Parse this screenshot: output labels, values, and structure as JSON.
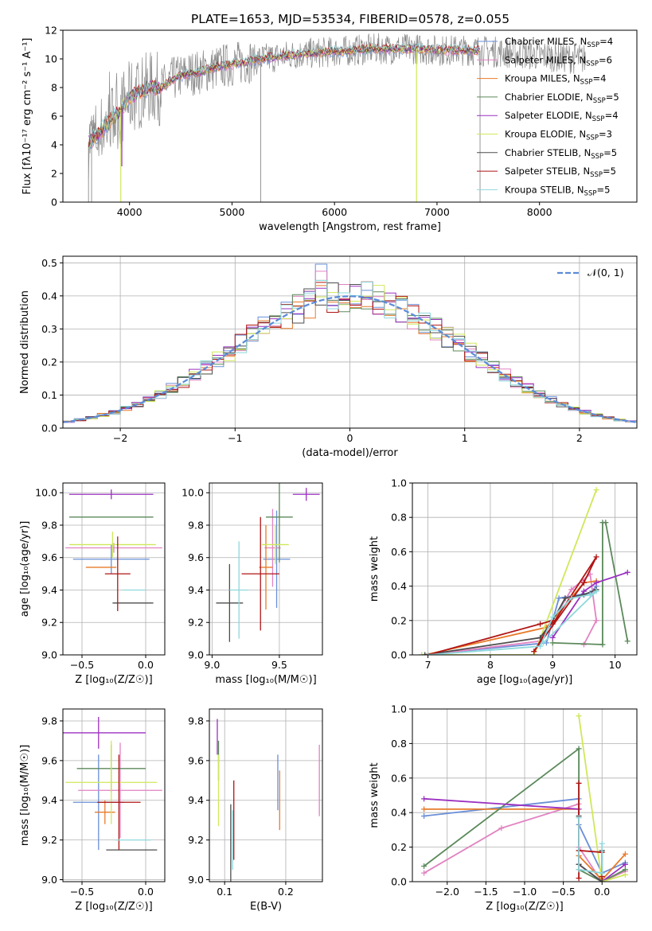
{
  "figure": {
    "title": "PLATE=1653, MJD=53534, FIBERID=0578, z=0.055"
  },
  "colors": {
    "Chabrier MILES": "#6a8fd8",
    "Salpeter MILES": "#e183c1",
    "Kroupa MILES": "#e87b2a",
    "Chabrier ELODIE": "#5b8a5b",
    "Salpeter ELODIE": "#9b30c0",
    "Kroupa ELODIE": "#cfe85a",
    "Chabrier STELIB": "#4d4d4d",
    "Salpeter STELIB": "#b01515",
    "Kroupa STELIB": "#8ed8dc",
    "data": "#8a8a8a"
  },
  "chart_data": [
    {
      "id": "spectrum",
      "type": "line",
      "xlabel": "wavelength [Angstrom, rest frame]",
      "ylabel": "Flux [fλ10⁻¹⁷ erg cm⁻² s⁻¹ A⁻¹]",
      "xlim": [
        3350,
        8950
      ],
      "ylim": [
        0,
        12
      ],
      "xticks": [
        4000,
        5000,
        6000,
        7000,
        8000
      ],
      "yticks": [
        0,
        2,
        4,
        6,
        8,
        10,
        12
      ],
      "grid": false,
      "legend_position": "right",
      "continuum": {
        "x": [
          3600,
          3700,
          3800,
          3900,
          4000,
          4100,
          4200,
          4300,
          4400,
          4500,
          4600,
          4700,
          4800,
          4900,
          5000,
          5200,
          5400,
          5600,
          5800,
          6000,
          6200,
          6400,
          6600,
          6800,
          7000,
          7200,
          7400
        ],
        "y": [
          4.2,
          4.8,
          5.6,
          6.3,
          7.3,
          7.7,
          8.0,
          7.9,
          8.5,
          8.8,
          9.0,
          9.1,
          9.3,
          9.5,
          9.6,
          9.9,
          10.1,
          10.3,
          10.4,
          10.5,
          10.6,
          10.7,
          10.7,
          10.7,
          10.6,
          10.6,
          10.6
        ]
      },
      "data_range": [
        3600,
        8450
      ],
      "model_range": [
        3600,
        7420
      ],
      "data_spikes": [
        {
          "x": 3600,
          "y": 0
        },
        {
          "x": 3630,
          "y": 0
        },
        {
          "x": 5280,
          "y": 0
        },
        {
          "x": 7420,
          "y": 0
        }
      ],
      "model_dips": [
        {
          "x": 3915,
          "y": 0,
          "series": "Kroupa ELODIE"
        },
        {
          "x": 3925,
          "y": 2.5,
          "series": "Salpeter ELODIE"
        },
        {
          "x": 6800,
          "y": 0,
          "series": "Kroupa ELODIE"
        }
      ],
      "series": [
        {
          "name": "Chabrier MILES, N",
          "sub": "SSP",
          "tail": "=4",
          "key": "Chabrier MILES"
        },
        {
          "name": "Salpeter MILES, N",
          "sub": "SSP",
          "tail": "=6",
          "key": "Salpeter MILES"
        },
        {
          "name": "Kroupa MILES, N",
          "sub": "SSP",
          "tail": "=4",
          "key": "Kroupa MILES"
        },
        {
          "name": "Chabrier ELODIE, N",
          "sub": "SSP",
          "tail": "=5",
          "key": "Chabrier ELODIE"
        },
        {
          "name": "Salpeter ELODIE, N",
          "sub": "SSP",
          "tail": "=4",
          "key": "Salpeter ELODIE"
        },
        {
          "name": "Kroupa ELODIE, N",
          "sub": "SSP",
          "tail": "=3",
          "key": "Kroupa ELODIE"
        },
        {
          "name": "Chabrier STELIB, N",
          "sub": "SSP",
          "tail": "=5",
          "key": "Chabrier STELIB"
        },
        {
          "name": "Salpeter STELIB, N",
          "sub": "SSP",
          "tail": "=5",
          "key": "Salpeter STELIB"
        },
        {
          "name": "Kroupa STELIB, N",
          "sub": "SSP",
          "tail": "=5",
          "key": "Kroupa STELIB"
        }
      ]
    },
    {
      "id": "residuals",
      "type": "line",
      "xlabel": "(data-model)/error",
      "ylabel": "Normed distribution",
      "xlim": [
        -2.5,
        2.5
      ],
      "ylim": [
        0,
        0.52
      ],
      "xticks": [
        -2,
        -1,
        0,
        1,
        2
      ],
      "yticks": [
        0.0,
        0.1,
        0.2,
        0.3,
        0.4,
        0.5
      ],
      "grid": true,
      "legend_position": "top-right",
      "gaussian_label": "𝒩(0, 1)",
      "gaussian_color": "#5b8bd8",
      "bin_width": 0.1,
      "peaks": [
        0.5,
        0.49,
        0.44,
        0.45,
        0.43,
        0.4,
        0.38,
        0.46,
        0.45
      ]
    },
    {
      "id": "age-vs-Z",
      "type": "scatter",
      "xlabel": "Z [log₁₀(Z/Z☉)]",
      "ylabel": "age  [log₁₀(age/yr)]",
      "xlim": [
        -0.65,
        0.15
      ],
      "ylim": [
        9.0,
        10.06
      ],
      "xticks": [
        -0.5,
        0.0
      ],
      "yticks": [
        9.0,
        9.2,
        9.4,
        9.6,
        9.8,
        10.0
      ],
      "grid": true,
      "points": [
        {
          "x": -0.27,
          "y": 9.59,
          "xerr": 0.3,
          "yerr": 0.09,
          "s": "Chabrier MILES"
        },
        {
          "x": -0.25,
          "y": 9.66,
          "xerr": 0.38,
          "yerr": 0.03,
          "s": "Salpeter MILES"
        },
        {
          "x": -0.35,
          "y": 9.54,
          "xerr": 0.12,
          "yerr": 0.0,
          "s": "Kroupa MILES"
        },
        {
          "x": -0.27,
          "y": 9.85,
          "xerr": 0.33,
          "yerr": 0.0,
          "s": "Chabrier ELODIE"
        },
        {
          "x": -0.27,
          "y": 9.99,
          "xerr": 0.33,
          "yerr": 0.03,
          "s": "Salpeter ELODIE"
        },
        {
          "x": -0.26,
          "y": 9.68,
          "xerr": 0.34,
          "yerr": 0.08,
          "s": "Kroupa ELODIE"
        },
        {
          "x": -0.1,
          "y": 9.32,
          "xerr": 0.16,
          "yerr": 0.0,
          "s": "Chabrier STELIB"
        },
        {
          "x": -0.22,
          "y": 9.5,
          "xerr": 0.1,
          "yerr": 0.23,
          "s": "Salpeter STELIB"
        },
        {
          "x": -0.09,
          "y": 9.4,
          "xerr": 0.09,
          "yerr": 0.0,
          "s": "Kroupa STELIB"
        }
      ]
    },
    {
      "id": "age-vs-mass",
      "type": "scatter",
      "xlabel": "mass [log₁₀(M/M☉)]",
      "ylabel": "",
      "xlim": [
        8.98,
        9.82
      ],
      "ylim": [
        9.0,
        10.06
      ],
      "xticks": [
        9.0,
        9.5
      ],
      "yticks": [
        9.0,
        9.2,
        9.4,
        9.6,
        9.8,
        10.0
      ],
      "grid": true,
      "points": [
        {
          "x": 9.48,
          "y": 9.59,
          "xerr": 0.1,
          "yerr": 0.3,
          "s": "Chabrier MILES"
        },
        {
          "x": 9.45,
          "y": 9.66,
          "xerr": 0.06,
          "yerr": 0.24,
          "s": "Salpeter MILES"
        },
        {
          "x": 9.4,
          "y": 9.54,
          "xerr": 0.05,
          "yerr": 0.26,
          "s": "Kroupa MILES"
        },
        {
          "x": 9.5,
          "y": 9.85,
          "xerr": 0.1,
          "yerr": 0.28,
          "s": "Chabrier ELODIE"
        },
        {
          "x": 9.7,
          "y": 9.99,
          "xerr": 0.1,
          "yerr": 0.04,
          "s": "Salpeter ELODIE"
        },
        {
          "x": 9.47,
          "y": 9.68,
          "xerr": 0.1,
          "yerr": 0.12,
          "s": "Kroupa ELODIE"
        },
        {
          "x": 9.13,
          "y": 9.32,
          "xerr": 0.1,
          "yerr": 0.24,
          "s": "Chabrier STELIB"
        },
        {
          "x": 9.36,
          "y": 9.5,
          "xerr": 0.14,
          "yerr": 0.35,
          "s": "Salpeter STELIB"
        },
        {
          "x": 9.2,
          "y": 9.4,
          "xerr": 0.07,
          "yerr": 0.3,
          "s": "Kroupa STELIB"
        }
      ]
    },
    {
      "id": "weight-vs-age",
      "type": "line",
      "xlabel": "age  [log₁₀(age/yr)]",
      "ylabel": "mass weight",
      "xlim": [
        6.75,
        10.35
      ],
      "ylim": [
        0,
        1.0
      ],
      "xticks": [
        7,
        8,
        9,
        10
      ],
      "yticks": [
        0.0,
        0.2,
        0.4,
        0.6,
        0.8,
        1.0
      ],
      "grid": true,
      "series": [
        {
          "s": "Chabrier MILES",
          "x": [
            6.9,
            8.9,
            9.1,
            9.6,
            9.7
          ],
          "y": [
            0.0,
            0.07,
            0.33,
            0.36,
            0.4
          ]
        },
        {
          "s": "Salpeter MILES",
          "x": [
            7.0,
            8.8,
            9.3,
            9.6,
            9.7,
            9.5
          ],
          "y": [
            0.0,
            0.08,
            0.38,
            0.47,
            0.2,
            0.06
          ]
        },
        {
          "s": "Kroupa MILES",
          "x": [
            6.95,
            8.9,
            9.5,
            9.7
          ],
          "y": [
            0.0,
            0.16,
            0.42,
            0.43
          ]
        },
        {
          "s": "Chabrier ELODIE",
          "x": [
            9.0,
            9.8,
            9.8,
            9.85,
            10.2
          ],
          "y": [
            0.07,
            0.06,
            0.77,
            0.77,
            0.08
          ]
        },
        {
          "s": "Salpeter ELODIE",
          "x": [
            9.0,
            9.5,
            9.7,
            10.2
          ],
          "y": [
            0.1,
            0.37,
            0.42,
            0.48
          ]
        },
        {
          "s": "Kroupa ELODIE",
          "x": [
            6.9,
            8.7,
            9.7
          ],
          "y": [
            0.0,
            0.0,
            0.96
          ]
        },
        {
          "s": "Chabrier STELIB",
          "x": [
            6.95,
            8.8,
            9.0,
            9.2,
            9.5,
            9.7
          ],
          "y": [
            0.0,
            0.1,
            0.2,
            0.33,
            0.35,
            0.38
          ]
        },
        {
          "s": "Salpeter STELIB",
          "x": [
            7.0,
            8.8,
            9.0,
            8.7,
            9.5,
            9.7,
            9.0
          ],
          "y": [
            0.0,
            0.18,
            0.2,
            0.02,
            0.42,
            0.57,
            0.18
          ]
        },
        {
          "s": "Kroupa STELIB",
          "x": [
            7.0,
            8.8,
            9.0,
            9.3,
            9.6,
            9.7,
            8.85
          ],
          "y": [
            0.0,
            0.05,
            0.22,
            0.33,
            0.35,
            0.37,
            0.07
          ]
        }
      ]
    },
    {
      "id": "mass-vs-Z",
      "type": "scatter",
      "xlabel": "Z [log₁₀(Z/Z☉)]",
      "ylabel": "mass [log₁₀(M/M☉)]",
      "xlim": [
        -0.65,
        0.15
      ],
      "ylim": [
        8.99,
        9.86
      ],
      "xticks": [
        -0.5,
        0.0
      ],
      "yticks": [
        9.0,
        9.2,
        9.4,
        9.6,
        9.8
      ],
      "grid": true,
      "points": [
        {
          "x": -0.37,
          "y": 9.39,
          "xerr": 0.2,
          "yerr": 0.24,
          "s": "Chabrier MILES"
        },
        {
          "x": -0.2,
          "y": 9.45,
          "xerr": 0.33,
          "yerr": 0.24,
          "s": "Salpeter MILES"
        },
        {
          "x": -0.32,
          "y": 9.34,
          "xerr": 0.08,
          "yerr": 0.06,
          "s": "Kroupa MILES"
        },
        {
          "x": -0.27,
          "y": 9.56,
          "xerr": 0.27,
          "yerr": 0.12,
          "s": "Chabrier ELODIE"
        },
        {
          "x": -0.37,
          "y": 9.74,
          "xerr": 0.37,
          "yerr": 0.08,
          "s": "Salpeter ELODIE"
        },
        {
          "x": -0.27,
          "y": 9.49,
          "xerr": 0.36,
          "yerr": 0.21,
          "s": "Kroupa ELODIE"
        },
        {
          "x": -0.11,
          "y": 9.15,
          "xerr": 0.2,
          "yerr": 0.0,
          "s": "Chabrier STELIB"
        },
        {
          "x": -0.21,
          "y": 9.39,
          "xerr": 0.17,
          "yerr": 0.24,
          "s": "Salpeter STELIB"
        },
        {
          "x": -0.1,
          "y": 9.2,
          "xerr": 0.14,
          "yerr": 0.0,
          "s": "Kroupa STELIB"
        }
      ]
    },
    {
      "id": "mass-vs-EBV",
      "type": "scatter",
      "xlabel": "E(B-V)",
      "ylabel": "",
      "xlim": [
        0.075,
        0.26
      ],
      "ylim": [
        8.99,
        9.86
      ],
      "xticks": [
        0.1,
        0.2
      ],
      "yticks": [
        9.0,
        9.2,
        9.4,
        9.6,
        9.8
      ],
      "grid": true,
      "points": [
        {
          "x": 0.187,
          "y": 9.49,
          "xerr": 0.0,
          "yerr": 0.14,
          "s": "Chabrier MILES"
        },
        {
          "x": 0.255,
          "y": 9.5,
          "xerr": 0.0,
          "yerr": 0.18,
          "s": "Salpeter MILES"
        },
        {
          "x": 0.19,
          "y": 9.4,
          "xerr": 0.0,
          "yerr": 0.15,
          "s": "Kroupa MILES"
        },
        {
          "x": 0.09,
          "y": 9.6,
          "xerr": 0.0,
          "yerr": 0.1,
          "s": "Chabrier ELODIE"
        },
        {
          "x": 0.088,
          "y": 9.72,
          "xerr": 0.0,
          "yerr": 0.09,
          "s": "Salpeter ELODIE"
        },
        {
          "x": 0.09,
          "y": 9.45,
          "xerr": 0.0,
          "yerr": 0.18,
          "s": "Kroupa ELODIE"
        },
        {
          "x": 0.11,
          "y": 9.16,
          "xerr": 0.0,
          "yerr": 0.22,
          "s": "Chabrier STELIB"
        },
        {
          "x": 0.115,
          "y": 9.3,
          "xerr": 0.0,
          "yerr": 0.2,
          "s": "Salpeter STELIB"
        },
        {
          "x": 0.113,
          "y": 9.2,
          "xerr": 0.0,
          "yerr": 0.15,
          "s": "Kroupa STELIB"
        }
      ]
    },
    {
      "id": "weight-vs-Z",
      "type": "line",
      "xlabel": "Z [log₁₀(Z/Z☉)]",
      "ylabel": "mass weight",
      "xlim": [
        -2.45,
        0.45
      ],
      "ylim": [
        0,
        1.0
      ],
      "xticks": [
        -2.0,
        -1.5,
        -1.0,
        -0.5,
        0.0
      ],
      "yticks": [
        0.0,
        0.2,
        0.4,
        0.6,
        0.8,
        1.0
      ],
      "grid": true,
      "series": [
        {
          "s": "Chabrier MILES",
          "x": [
            -2.3,
            -0.3,
            -0.3,
            0.0,
            0.3
          ],
          "y": [
            0.38,
            0.48,
            0.33,
            0.05,
            0.11
          ]
        },
        {
          "s": "Salpeter MILES",
          "x": [
            -2.3,
            -1.3,
            -0.3,
            -0.3,
            0.0,
            0.3
          ],
          "y": [
            0.05,
            0.31,
            0.45,
            0.2,
            0.0,
            0.06
          ]
        },
        {
          "s": "Kroupa MILES",
          "x": [
            -2.3,
            -0.3,
            -0.3,
            0.0,
            0.3
          ],
          "y": [
            0.42,
            0.42,
            0.15,
            0.01,
            0.16
          ]
        },
        {
          "s": "Chabrier ELODIE",
          "x": [
            -2.3,
            -0.3,
            -0.3,
            0.0,
            0.3
          ],
          "y": [
            0.09,
            0.77,
            0.07,
            0.0,
            0.07
          ]
        },
        {
          "s": "Salpeter ELODIE",
          "x": [
            -2.3,
            -0.3,
            -0.3,
            0.0,
            0.3
          ],
          "y": [
            0.48,
            0.42,
            0.1,
            0.0,
            0.1
          ]
        },
        {
          "s": "Kroupa ELODIE",
          "x": [
            -0.3,
            0.0,
            0.3
          ],
          "y": [
            0.96,
            0.0,
            0.04
          ]
        },
        {
          "s": "Chabrier STELIB",
          "x": [
            -0.3,
            -0.3,
            0.0,
            0.0
          ],
          "y": [
            0.38,
            0.1,
            0.0,
            0.18
          ]
        },
        {
          "s": "Salpeter STELIB",
          "x": [
            -0.3,
            -0.3,
            -0.3,
            0.0,
            0.0
          ],
          "y": [
            0.57,
            0.02,
            0.18,
            0.17,
            0.03
          ]
        },
        {
          "s": "Kroupa STELIB",
          "x": [
            -0.3,
            -0.3,
            0.0,
            0.0
          ],
          "y": [
            0.37,
            0.07,
            0.05,
            0.22
          ]
        }
      ]
    }
  ]
}
